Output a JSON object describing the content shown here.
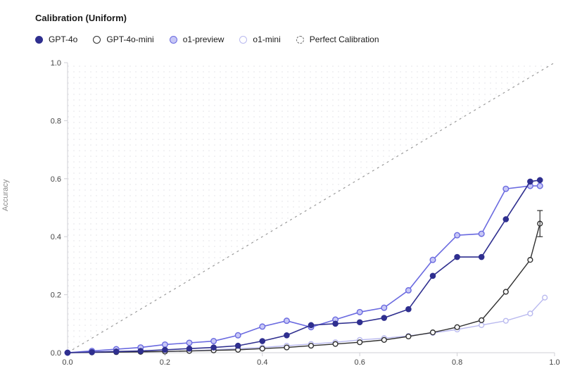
{
  "chart": {
    "type": "line-scatter",
    "title": "Calibration (Uniform)",
    "ylabel": "Accuracy",
    "background_color": "#ffffff",
    "dot_bg_color": "#e8e8ec",
    "grid_dash": "3,5",
    "perfect_line_color": "#9a9a9a",
    "axis_line_color": "#cfcfd4",
    "axis_text_color": "#444444",
    "xlim": [
      0.0,
      1.0
    ],
    "ylim": [
      0.0,
      1.0
    ],
    "xtick_step": 0.2,
    "ytick_step": 0.2,
    "legend": [
      {
        "key": "gpt4o",
        "label": "GPT-4o",
        "stroke": "#2f2f8f",
        "fill": "#2f2f8f",
        "filled": true,
        "dashed": false
      },
      {
        "key": "gpt4o_mini",
        "label": "GPT-4o-mini",
        "stroke": "#2f2f2f",
        "fill": "#ffffff",
        "filled": false,
        "dashed": false
      },
      {
        "key": "o1_preview",
        "label": "o1-preview",
        "stroke": "#6a6ae0",
        "fill": "#c7c7f6",
        "filled": true,
        "dashed": false
      },
      {
        "key": "o1_mini",
        "label": "o1-mini",
        "stroke": "#b9b9ef",
        "fill": "#ffffff",
        "filled": false,
        "dashed": false
      },
      {
        "key": "perfect",
        "label": "Perfect Calibration",
        "stroke": "#9a9a9a",
        "fill": "none",
        "filled": false,
        "dashed": true
      }
    ],
    "series": {
      "gpt4o": {
        "stroke": "#2f2f8f",
        "fill": "#2f2f8f",
        "line_width": 1.6,
        "marker_r": 3.6,
        "points": [
          [
            0.0,
            0.0
          ],
          [
            0.05,
            0.002
          ],
          [
            0.1,
            0.004
          ],
          [
            0.15,
            0.006
          ],
          [
            0.2,
            0.01
          ],
          [
            0.25,
            0.014
          ],
          [
            0.3,
            0.018
          ],
          [
            0.35,
            0.024
          ],
          [
            0.4,
            0.04
          ],
          [
            0.45,
            0.06
          ],
          [
            0.5,
            0.095
          ],
          [
            0.55,
            0.1
          ],
          [
            0.6,
            0.105
          ],
          [
            0.65,
            0.12
          ],
          [
            0.7,
            0.15
          ],
          [
            0.75,
            0.265
          ],
          [
            0.8,
            0.33
          ],
          [
            0.85,
            0.33
          ],
          [
            0.9,
            0.46
          ],
          [
            0.95,
            0.59
          ],
          [
            0.97,
            0.595
          ]
        ]
      },
      "gpt4o_mini": {
        "stroke": "#2f2f2f",
        "fill": "#ffffff",
        "line_width": 1.4,
        "marker_r": 3.4,
        "error_bar": {
          "x": 0.97,
          "y": 0.445,
          "err": 0.045
        },
        "points": [
          [
            0.0,
            0.0
          ],
          [
            0.05,
            0.001
          ],
          [
            0.1,
            0.002
          ],
          [
            0.15,
            0.003
          ],
          [
            0.2,
            0.004
          ],
          [
            0.25,
            0.006
          ],
          [
            0.3,
            0.008
          ],
          [
            0.35,
            0.01
          ],
          [
            0.4,
            0.014
          ],
          [
            0.45,
            0.018
          ],
          [
            0.5,
            0.024
          ],
          [
            0.55,
            0.03
          ],
          [
            0.6,
            0.036
          ],
          [
            0.65,
            0.044
          ],
          [
            0.7,
            0.056
          ],
          [
            0.75,
            0.07
          ],
          [
            0.8,
            0.088
          ],
          [
            0.85,
            0.112
          ],
          [
            0.9,
            0.21
          ],
          [
            0.95,
            0.32
          ],
          [
            0.97,
            0.445
          ]
        ]
      },
      "o1_preview": {
        "stroke": "#6a6ae0",
        "fill": "#c7c7f6",
        "line_width": 1.6,
        "marker_r": 3.8,
        "points": [
          [
            0.0,
            0.0
          ],
          [
            0.05,
            0.006
          ],
          [
            0.1,
            0.012
          ],
          [
            0.15,
            0.018
          ],
          [
            0.2,
            0.028
          ],
          [
            0.25,
            0.034
          ],
          [
            0.3,
            0.04
          ],
          [
            0.35,
            0.06
          ],
          [
            0.4,
            0.09
          ],
          [
            0.45,
            0.11
          ],
          [
            0.5,
            0.088
          ],
          [
            0.55,
            0.114
          ],
          [
            0.6,
            0.14
          ],
          [
            0.65,
            0.155
          ],
          [
            0.7,
            0.215
          ],
          [
            0.75,
            0.32
          ],
          [
            0.8,
            0.405
          ],
          [
            0.85,
            0.41
          ],
          [
            0.9,
            0.565
          ],
          [
            0.95,
            0.575
          ],
          [
            0.97,
            0.575
          ]
        ]
      },
      "o1_mini": {
        "stroke": "#b9b9ef",
        "fill": "#ffffff",
        "line_width": 1.4,
        "marker_r": 3.4,
        "points": [
          [
            0.0,
            0.0
          ],
          [
            0.05,
            0.001
          ],
          [
            0.1,
            0.002
          ],
          [
            0.15,
            0.003
          ],
          [
            0.2,
            0.004
          ],
          [
            0.25,
            0.006
          ],
          [
            0.3,
            0.01
          ],
          [
            0.35,
            0.014
          ],
          [
            0.4,
            0.018
          ],
          [
            0.45,
            0.024
          ],
          [
            0.5,
            0.03
          ],
          [
            0.55,
            0.036
          ],
          [
            0.6,
            0.044
          ],
          [
            0.65,
            0.05
          ],
          [
            0.7,
            0.058
          ],
          [
            0.75,
            0.068
          ],
          [
            0.8,
            0.08
          ],
          [
            0.85,
            0.095
          ],
          [
            0.9,
            0.11
          ],
          [
            0.95,
            0.135
          ],
          [
            0.98,
            0.19
          ]
        ]
      }
    }
  }
}
